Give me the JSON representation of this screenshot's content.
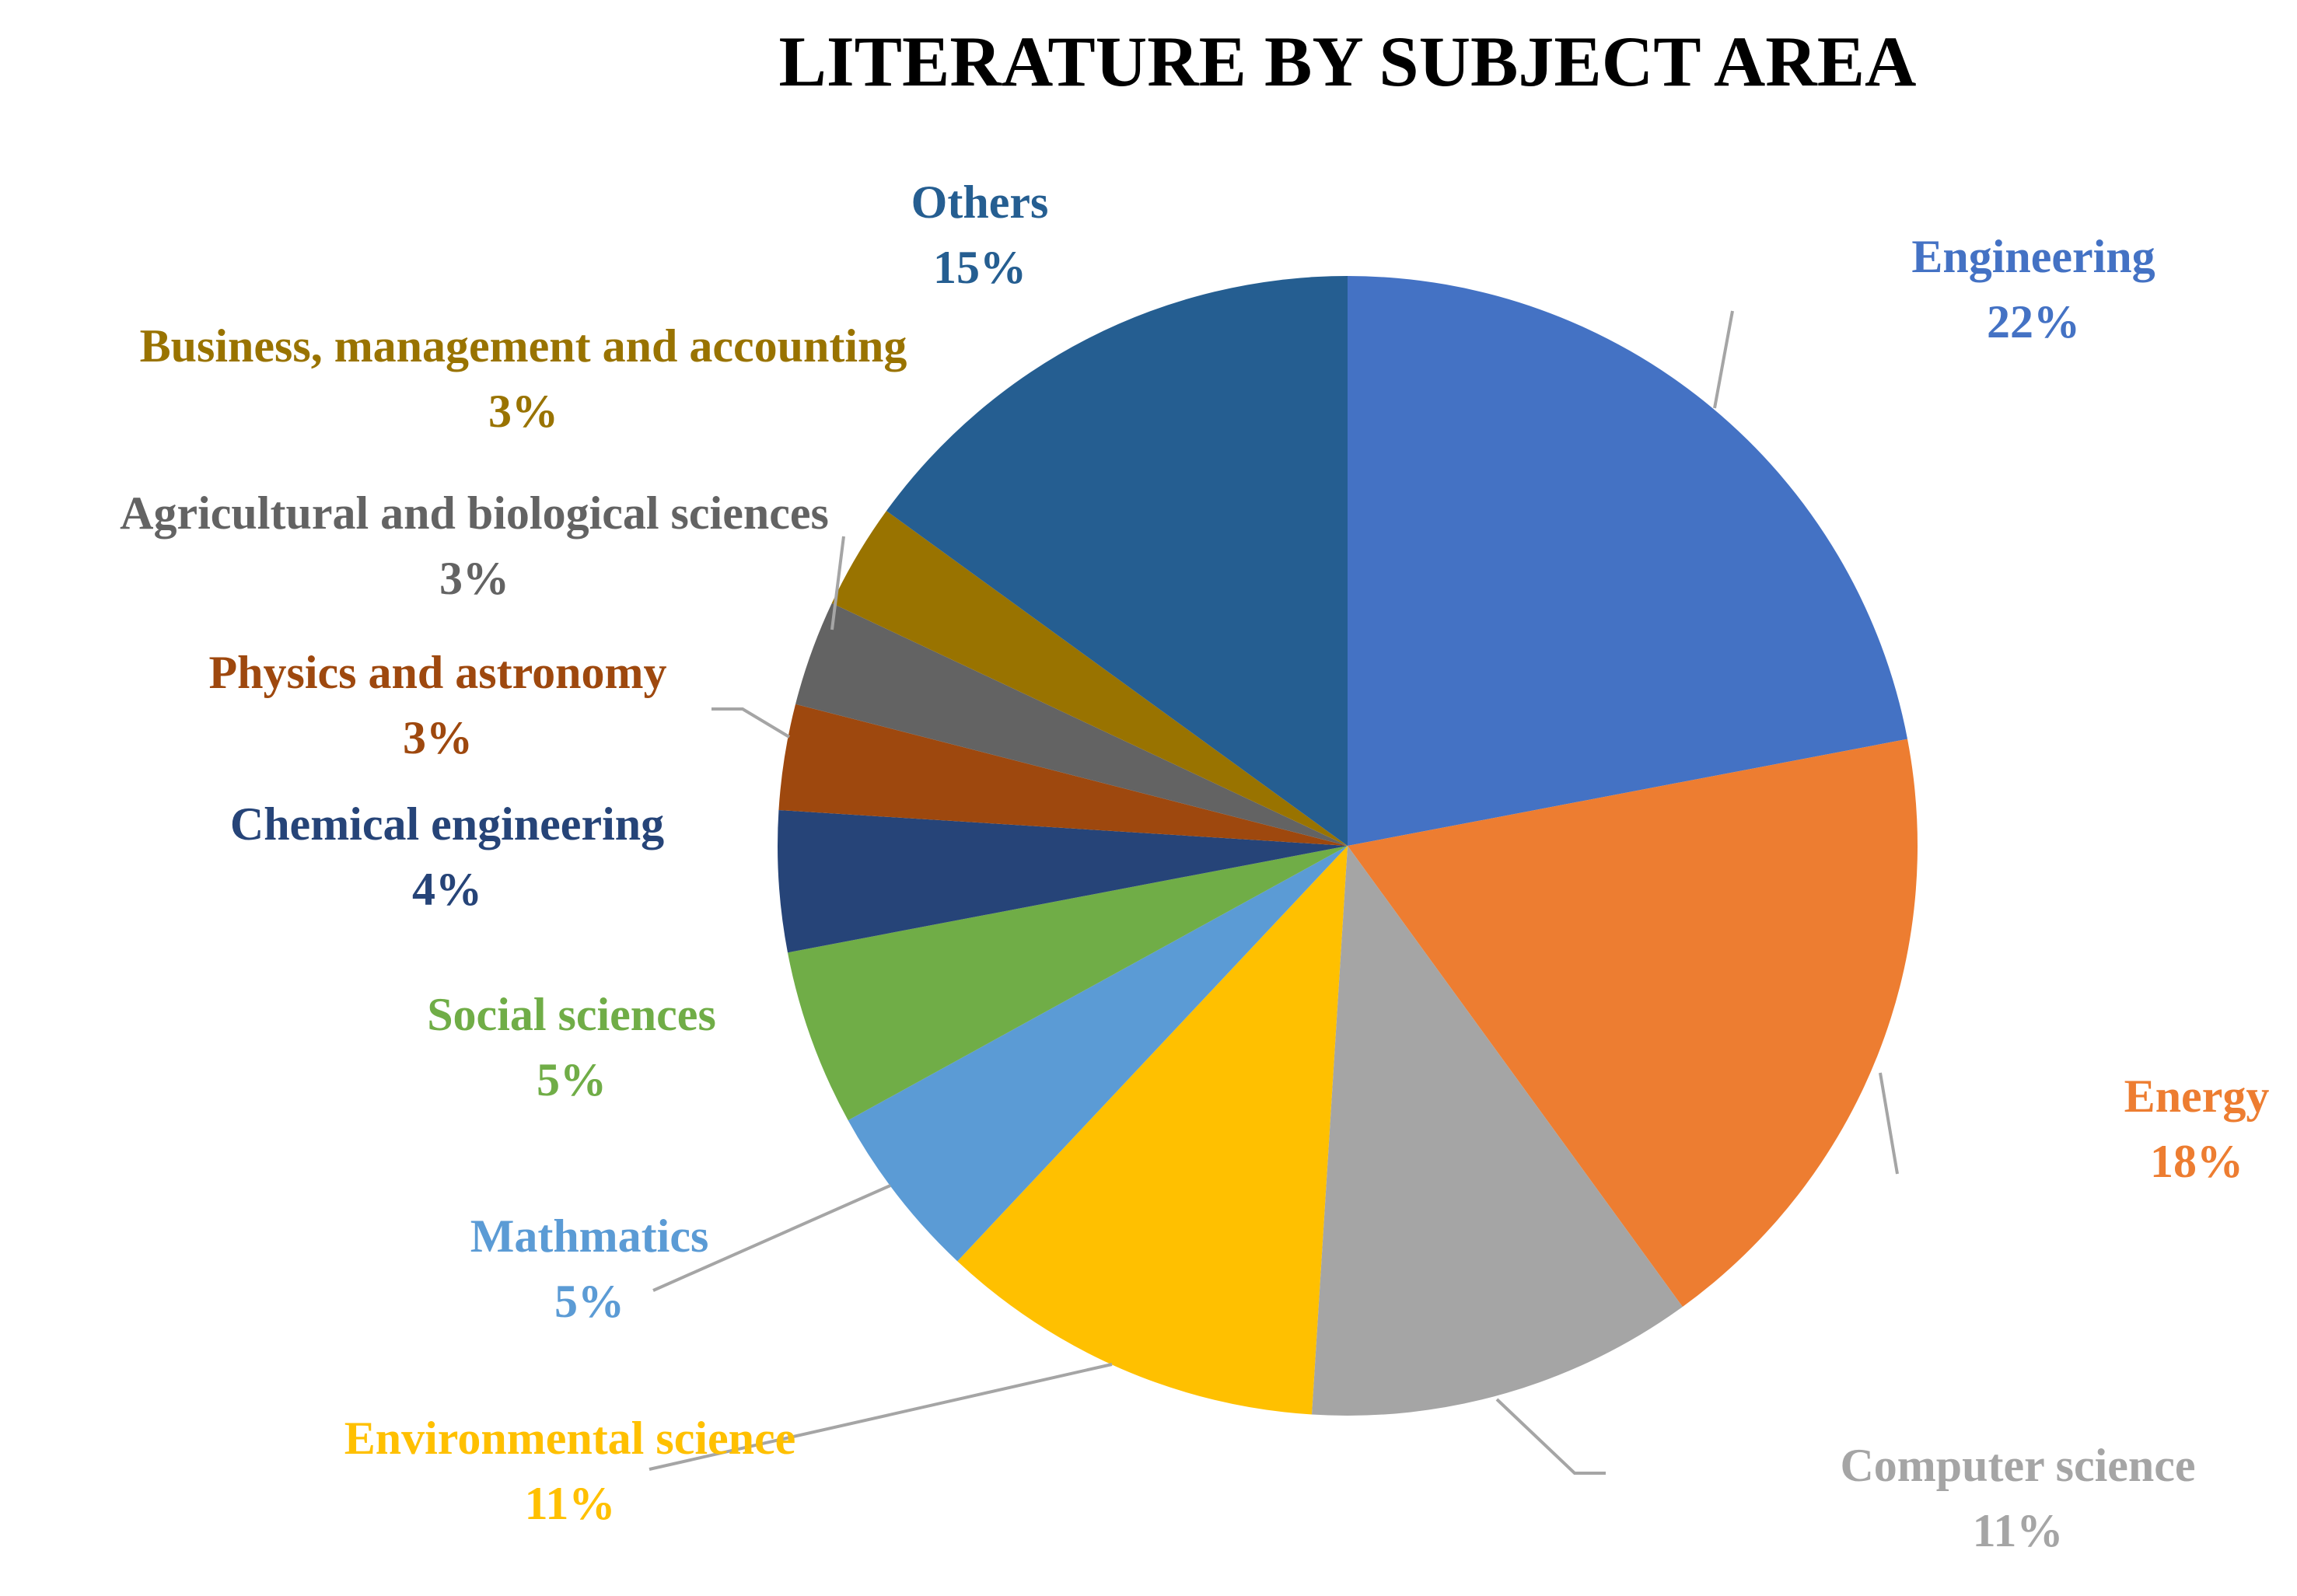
{
  "chart_data": {
    "type": "pie",
    "title": "LITERATURE BY SUBJECT AREA",
    "slices": [
      {
        "label": "Engineering",
        "value": 22,
        "pct_text": "22%",
        "color": "#4472C4"
      },
      {
        "label": "Energy",
        "value": 18,
        "pct_text": "18%",
        "color": "#ED7D31"
      },
      {
        "label": "Computer science",
        "value": 11,
        "pct_text": "11%",
        "color": "#A5A5A5"
      },
      {
        "label": "Environmental science",
        "value": 11,
        "pct_text": "11%",
        "color": "#FFC000"
      },
      {
        "label": "Mathmatics",
        "value": 5,
        "pct_text": "5%",
        "color": "#5B9BD5"
      },
      {
        "label": "Social sciences",
        "value": 5,
        "pct_text": "5%",
        "color": "#70AD47"
      },
      {
        "label": "Chemical engineering",
        "value": 4,
        "pct_text": "4%",
        "color": "#264478"
      },
      {
        "label": "Physics and astronomy",
        "value": 3,
        "pct_text": "3%",
        "color": "#9E480E"
      },
      {
        "label": "Agricultural and biological sciences",
        "value": 3,
        "pct_text": "3%",
        "color": "#636363"
      },
      {
        "label": "Business, management and accounting",
        "value": 3,
        "pct_text": "3%",
        "color": "#997300"
      },
      {
        "label": "Others",
        "value": 15,
        "pct_text": "15%",
        "color": "#255E91"
      }
    ],
    "start_angle": "12 o'clock",
    "direction": "clockwise",
    "legend": "none",
    "data_labels": "outside with leader lines",
    "leader_line_color": "#A5A5A5"
  }
}
